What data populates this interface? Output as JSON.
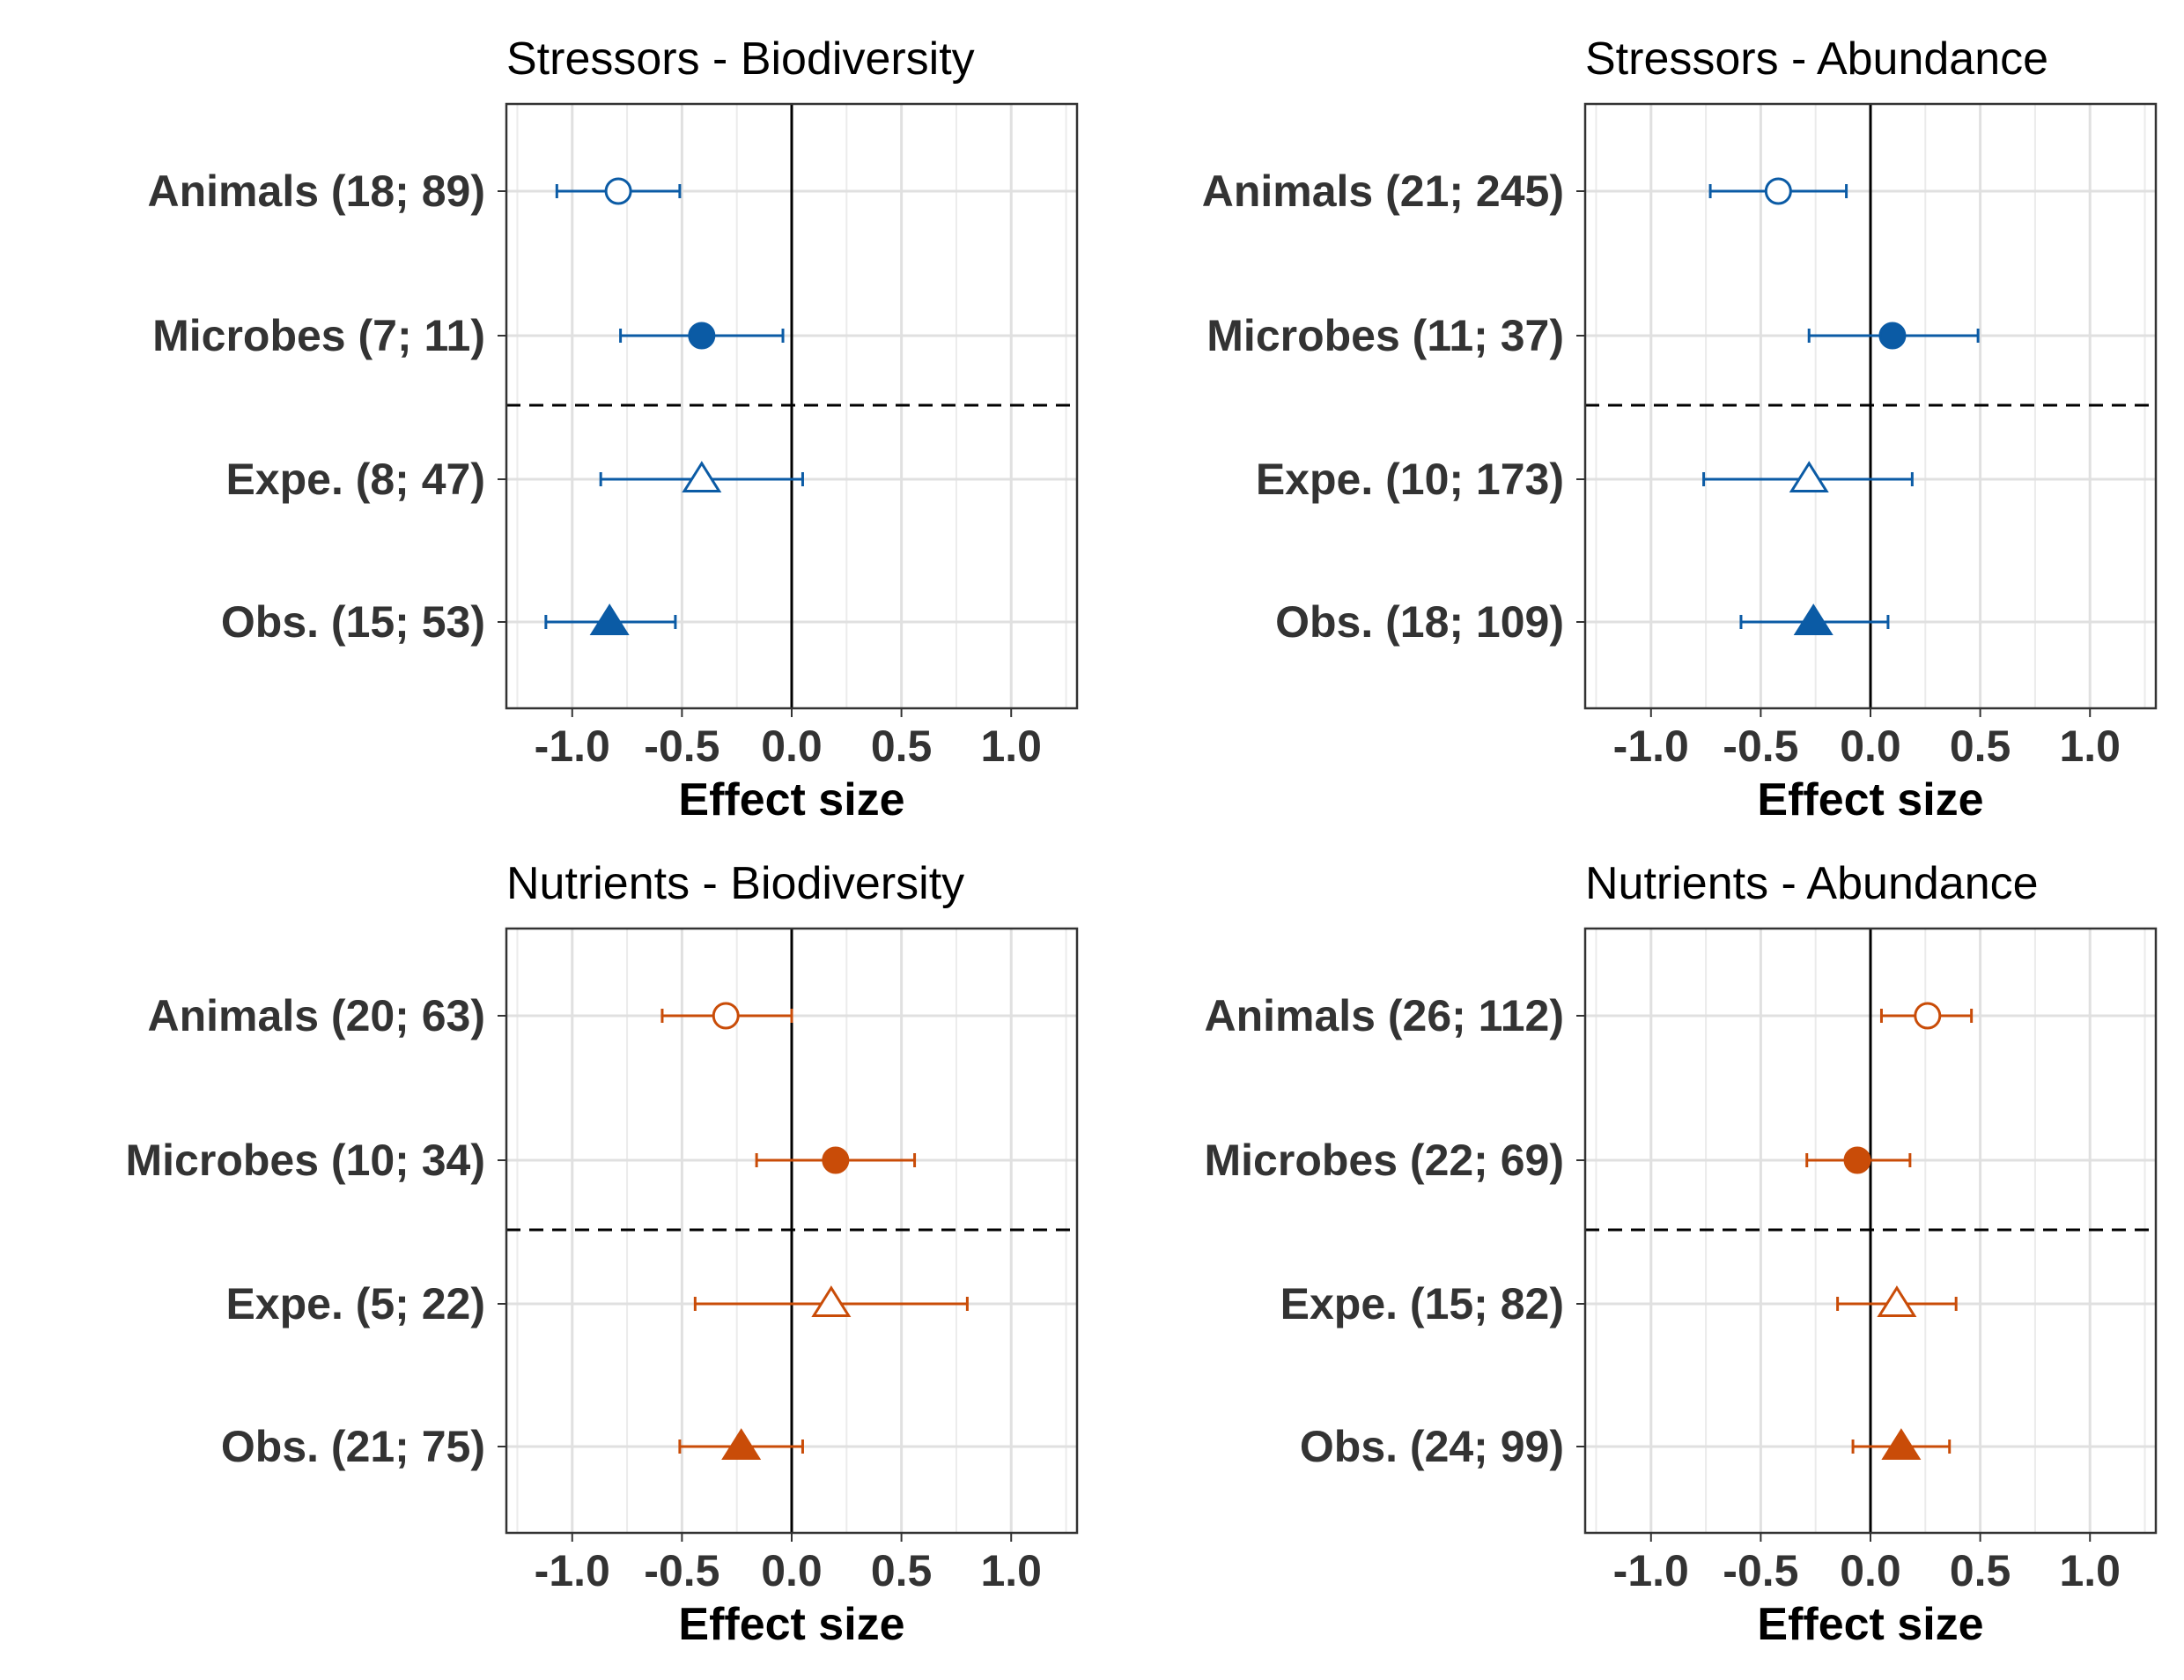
{
  "chart_data": [
    {
      "type": "forest",
      "title": "Stressors - Biodiversity",
      "xlabel": "Effect size",
      "xlim": [
        -1.3,
        1.3
      ],
      "xticks": [
        -1.0,
        -0.5,
        0.0,
        0.5,
        1.0
      ],
      "xtick_labels": [
        "-1.0",
        "-0.5",
        "0.0",
        "0.5",
        "1.0"
      ],
      "color": "#0b5ba5",
      "rows": [
        {
          "label": "Animals (18; 89)",
          "estimate": -0.79,
          "ci_low": -1.07,
          "ci_high": -0.51,
          "marker": "circle",
          "filled": false
        },
        {
          "label": "Microbes (7; 11)",
          "estimate": -0.41,
          "ci_low": -0.78,
          "ci_high": -0.04,
          "marker": "circle",
          "filled": true
        },
        {
          "label": "Expe. (8; 47)",
          "estimate": -0.41,
          "ci_low": -0.87,
          "ci_high": 0.05,
          "marker": "triangle",
          "filled": false
        },
        {
          "label": "Obs. (15; 53)",
          "estimate": -0.83,
          "ci_low": -1.12,
          "ci_high": -0.53,
          "marker": "triangle",
          "filled": true
        }
      ]
    },
    {
      "type": "forest",
      "title": "Stressors - Abundance",
      "xlabel": "Effect size",
      "xlim": [
        -1.3,
        1.3
      ],
      "xticks": [
        -1.0,
        -0.5,
        0.0,
        0.5,
        1.0
      ],
      "xtick_labels": [
        "-1.0",
        "-0.5",
        "0.0",
        "0.5",
        "1.0"
      ],
      "color": "#0b5ba5",
      "rows": [
        {
          "label": "Animals (21; 245)",
          "estimate": -0.42,
          "ci_low": -0.73,
          "ci_high": -0.11,
          "marker": "circle",
          "filled": false
        },
        {
          "label": "Microbes (11; 37)",
          "estimate": 0.1,
          "ci_low": -0.28,
          "ci_high": 0.49,
          "marker": "circle",
          "filled": true
        },
        {
          "label": "Expe. (10; 173)",
          "estimate": -0.28,
          "ci_low": -0.76,
          "ci_high": 0.19,
          "marker": "triangle",
          "filled": false
        },
        {
          "label": "Obs. (18; 109)",
          "estimate": -0.26,
          "ci_low": -0.59,
          "ci_high": 0.08,
          "marker": "triangle",
          "filled": true
        }
      ]
    },
    {
      "type": "forest",
      "title": "Nutrients - Biodiversity",
      "xlabel": "Effect size",
      "xlim": [
        -1.3,
        1.3
      ],
      "xticks": [
        -1.0,
        -0.5,
        0.0,
        0.5,
        1.0
      ],
      "xtick_labels": [
        "-1.0",
        "-0.5",
        "0.0",
        "0.5",
        "1.0"
      ],
      "color": "#c94c08",
      "rows": [
        {
          "label": "Animals (20; 63)",
          "estimate": -0.3,
          "ci_low": -0.59,
          "ci_high": 0.0,
          "marker": "circle",
          "filled": false
        },
        {
          "label": "Microbes (10; 34)",
          "estimate": 0.2,
          "ci_low": -0.16,
          "ci_high": 0.56,
          "marker": "circle",
          "filled": true
        },
        {
          "label": "Expe. (5; 22)",
          "estimate": 0.18,
          "ci_low": -0.44,
          "ci_high": 0.8,
          "marker": "triangle",
          "filled": false
        },
        {
          "label": "Obs. (21; 75)",
          "estimate": -0.23,
          "ci_low": -0.51,
          "ci_high": 0.05,
          "marker": "triangle",
          "filled": true
        }
      ]
    },
    {
      "type": "forest",
      "title": "Nutrients - Abundance",
      "xlabel": "Effect size",
      "xlim": [
        -1.3,
        1.3
      ],
      "xticks": [
        -1.0,
        -0.5,
        0.0,
        0.5,
        1.0
      ],
      "xtick_labels": [
        "-1.0",
        "-0.5",
        "0.0",
        "0.5",
        "1.0"
      ],
      "color": "#c94c08",
      "rows": [
        {
          "label": "Animals (26; 112)",
          "estimate": 0.26,
          "ci_low": 0.05,
          "ci_high": 0.46,
          "marker": "circle",
          "filled": false
        },
        {
          "label": "Microbes (22; 69)",
          "estimate": -0.06,
          "ci_low": -0.29,
          "ci_high": 0.18,
          "marker": "circle",
          "filled": true
        },
        {
          "label": "Expe. (15; 82)",
          "estimate": 0.12,
          "ci_low": -0.15,
          "ci_high": 0.39,
          "marker": "triangle",
          "filled": false
        },
        {
          "label": "Obs. (24; 99)",
          "estimate": 0.14,
          "ci_low": -0.08,
          "ci_high": 0.36,
          "marker": "triangle",
          "filled": true
        }
      ]
    }
  ]
}
